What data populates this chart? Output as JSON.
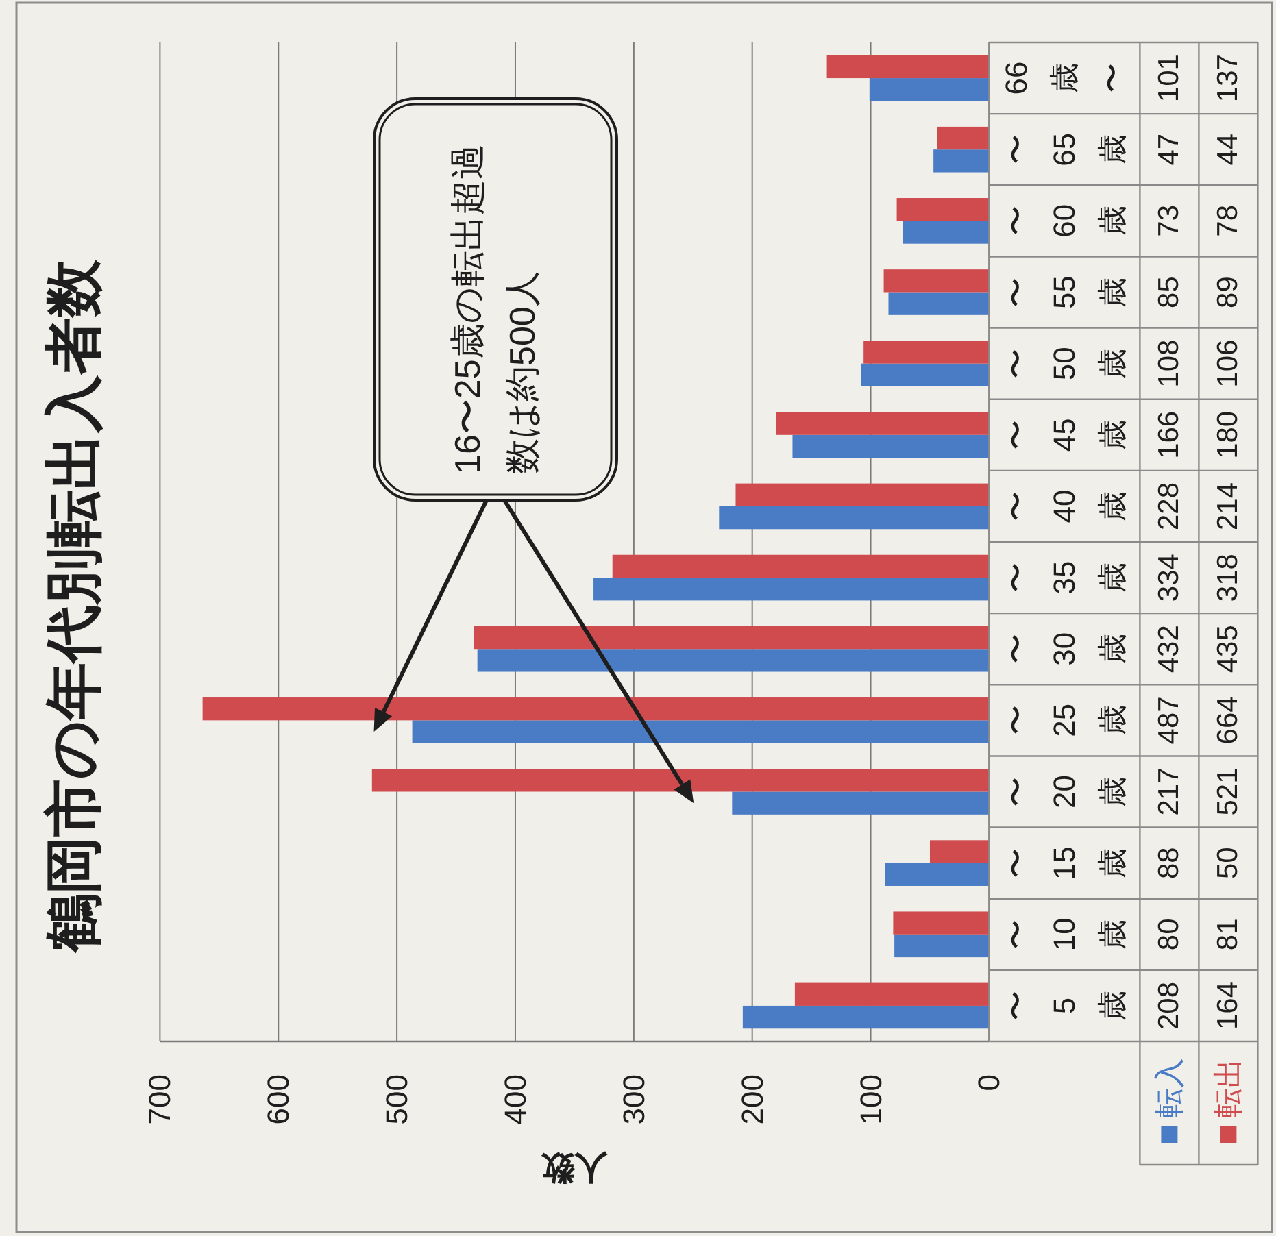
{
  "chart_data": {
    "type": "bar",
    "orientation": "horizontal",
    "title": "鶴岡市の年代別転出入者数",
    "xlabel": "人数",
    "categories": [
      "66歳〜",
      "〜65歳",
      "〜60歳",
      "〜55歳",
      "〜50歳",
      "〜45歳",
      "〜40歳",
      "〜35歳",
      "〜30歳",
      "〜25歳",
      "〜20歳",
      "〜15歳",
      "〜10歳",
      "〜5歳"
    ],
    "series": [
      {
        "name": "転入",
        "color": "#4a7cc5",
        "values": [
          101,
          47,
          73,
          85,
          108,
          166,
          228,
          334,
          432,
          487,
          217,
          88,
          80,
          208
        ]
      },
      {
        "name": "転出",
        "color": "#cf4b4e",
        "values": [
          137,
          44,
          78,
          89,
          106,
          180,
          214,
          318,
          435,
          664,
          521,
          50,
          81,
          164
        ]
      }
    ],
    "xlim": [
      700,
      0
    ],
    "xticks": [
      700,
      600,
      500,
      400,
      300,
      200,
      100,
      0
    ],
    "grid": "x",
    "legend": "bottom",
    "data_labels": true,
    "annotations": [
      "16〜25歳の転出超過数は約500人"
    ]
  }
}
